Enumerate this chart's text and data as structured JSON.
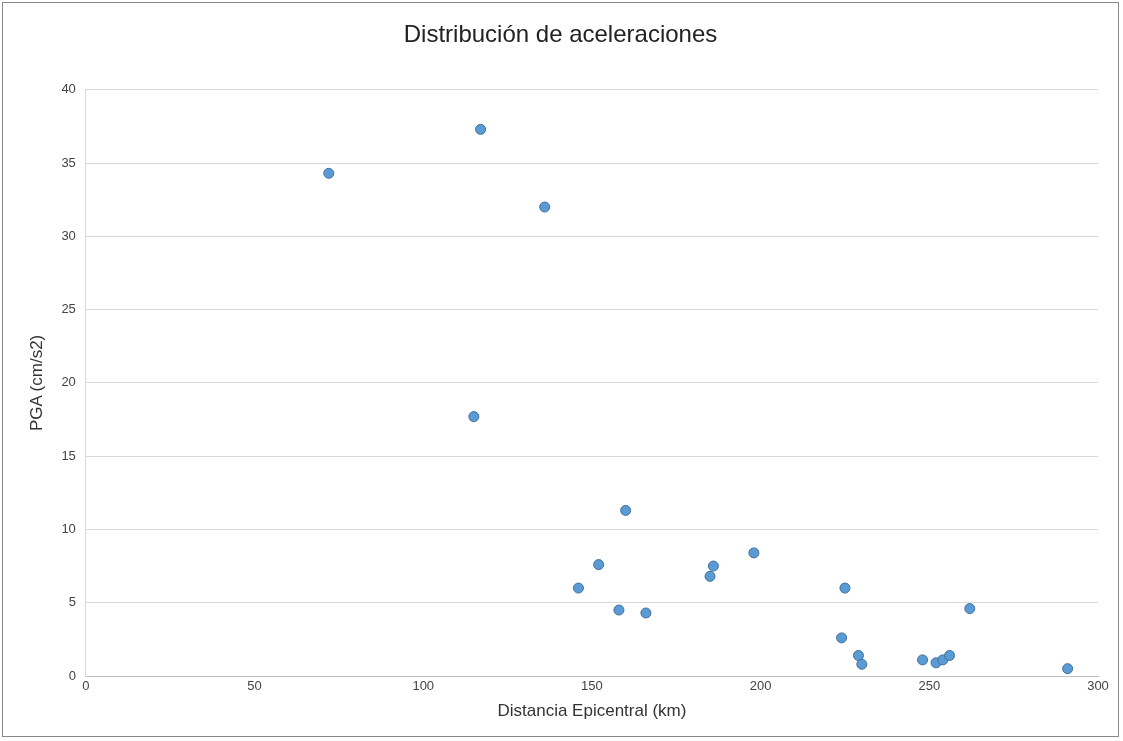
{
  "chart_data": {
    "type": "scatter",
    "title": "Distribución de aceleraciones",
    "xlabel": "Distancia Epicentral (km)",
    "ylabel": "PGA (cm/s2)",
    "x": [
      72,
      117,
      136,
      115,
      146,
      152,
      158,
      160,
      166,
      185,
      186,
      198,
      224,
      225,
      229,
      230,
      248,
      252,
      254,
      256,
      262,
      291
    ],
    "values": [
      34.3,
      37.3,
      32,
      17.7,
      6,
      7.6,
      4.5,
      11.3,
      4.3,
      6.8,
      7.5,
      8.4,
      2.6,
      6,
      1.4,
      0.8,
      1.1,
      0.9,
      1.1,
      1.4,
      4.6,
      0.5
    ],
    "color": "#5b9bd5",
    "marker": "circle",
    "xlim": [
      0,
      300
    ],
    "xticks": [
      0,
      50,
      100,
      150,
      200,
      250,
      300
    ],
    "ylim": [
      0,
      40
    ],
    "yticks": [
      0,
      5,
      10,
      15,
      20,
      25,
      30,
      35,
      40
    ],
    "grid": "y",
    "legend": false
  }
}
